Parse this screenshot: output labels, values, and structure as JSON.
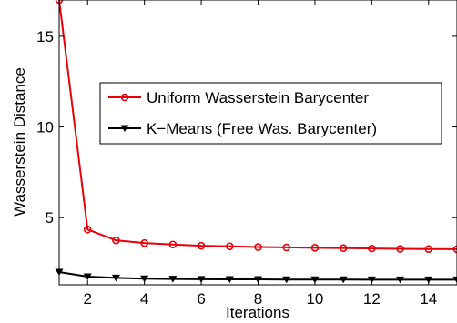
{
  "chart_data": {
    "type": "line",
    "title": "",
    "xlabel": "Iterations",
    "ylabel": "Wasserstein Distance",
    "xlim": [
      1,
      15
    ],
    "ylim": [
      1.3,
      17
    ],
    "grid": false,
    "legend_position": "center-right",
    "x": [
      1,
      2,
      3,
      4,
      5,
      6,
      7,
      8,
      9,
      10,
      11,
      12,
      13,
      14,
      15
    ],
    "x_ticks": [
      2,
      4,
      6,
      8,
      10,
      12,
      14
    ],
    "x_tick_labels": [
      "2",
      "4",
      "6",
      "8",
      "10",
      "12",
      "14"
    ],
    "y_ticks": [
      5,
      10,
      15
    ],
    "y_tick_labels": [
      "5",
      "10",
      "15"
    ],
    "series": [
      {
        "name": "Uniform Wasserstein Barycenter",
        "color": "#e8000b",
        "marker": "circle",
        "values": [
          17.0,
          4.35,
          3.75,
          3.6,
          3.52,
          3.45,
          3.42,
          3.38,
          3.36,
          3.34,
          3.32,
          3.3,
          3.28,
          3.27,
          3.26
        ]
      },
      {
        "name": "K−Means (Free Was. Barycenter)",
        "color": "#000000",
        "marker": "triangle-down",
        "values": [
          2.0,
          1.75,
          1.68,
          1.64,
          1.62,
          1.61,
          1.6,
          1.6,
          1.59,
          1.59,
          1.59,
          1.58,
          1.58,
          1.58,
          1.58
        ]
      }
    ]
  }
}
